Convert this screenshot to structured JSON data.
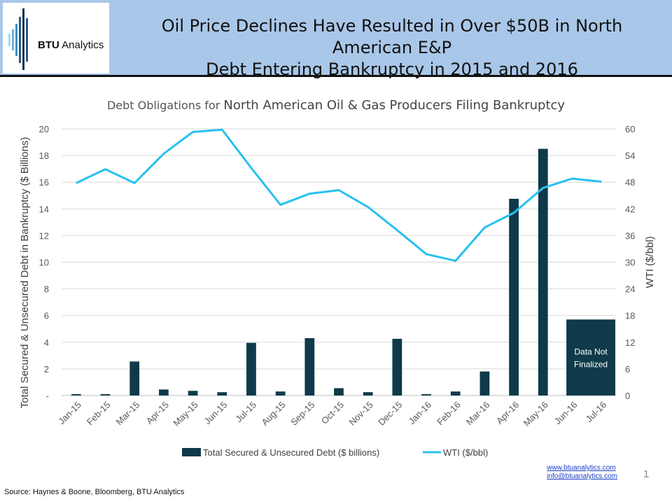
{
  "header": {
    "title_line1": "Oil Price Declines Have Resulted in Over $50B in North American E&P",
    "title_line2": "Debt Entering Bankruptcy in 2015 and 2016",
    "logo_text_bold": "BTU",
    "logo_text_rest": " Analytics"
  },
  "footer": {
    "link1": "www.btuanalytics.com",
    "link2": "info@btuanalytics.com",
    "page_number": "1",
    "source": "Source: Haynes & Boone, Bloomberg, BTU Analytics"
  },
  "colors": {
    "bar": "#0e3a4a",
    "line": "#27c1ee",
    "grid": "#d9d9d9",
    "header_bg": "#a9c7e8"
  },
  "chart_data": {
    "type": "bar",
    "title_part1": "Debt Obligations for ",
    "title_part2": "North American Oil & Gas Producers Filing Bankruptcy",
    "ylabel": "Total Secured & Unsecured Debt in Bankruptcy ($ Billions)",
    "y2label": "WTI ($/bbl)",
    "ylim": [
      0,
      20
    ],
    "y2lim": [
      0,
      60
    ],
    "yticks": [
      "-",
      "2",
      "4",
      "6",
      "8",
      "10",
      "12",
      "14",
      "16",
      "18",
      "20"
    ],
    "y2ticks": [
      "0",
      "6",
      "12",
      "18",
      "24",
      "30",
      "36",
      "42",
      "48",
      "54",
      "60"
    ],
    "grid": true,
    "legend_position": "bottom",
    "categories": [
      "Jan-15",
      "Feb-15",
      "Mar-15",
      "Apr-15",
      "May-15",
      "Jun-15",
      "Jul-15",
      "Aug-15",
      "Sep-15",
      "Oct-15",
      "Nov-15",
      "Dec-15",
      "Jan-16",
      "Feb-16",
      "Mar-16",
      "Apr-16",
      "May-16",
      "Jun-16",
      "Jul-16"
    ],
    "series": [
      {
        "name": "Total Secured & Unsecured Debt ($ billions)",
        "kind": "bar",
        "axis": "left",
        "values": [
          0.1,
          0.1,
          2.55,
          0.45,
          0.35,
          0.25,
          3.95,
          0.3,
          4.3,
          0.55,
          0.25,
          4.25,
          0.1,
          0.3,
          1.8,
          14.75,
          18.5,
          null,
          null
        ]
      },
      {
        "name": "WTI ($/bbl)",
        "kind": "line",
        "axis": "right",
        "values": [
          47.8,
          50.9,
          47.8,
          54.4,
          59.3,
          59.8,
          51.2,
          42.9,
          45.4,
          46.2,
          42.4,
          37.2,
          31.8,
          30.3,
          37.8,
          41.1,
          46.7,
          48.8,
          48.1
        ]
      }
    ],
    "annotation": {
      "label_line1": "Data Not",
      "label_line2": "Finalized",
      "value": 5.7,
      "from_category": "Jun-16",
      "to_category": "Jul-16"
    }
  }
}
